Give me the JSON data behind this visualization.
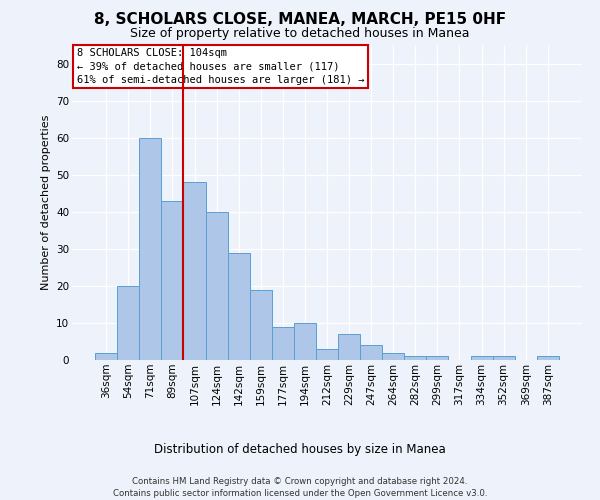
{
  "title": "8, SCHOLARS CLOSE, MANEA, MARCH, PE15 0HF",
  "subtitle": "Size of property relative to detached houses in Manea",
  "xlabel": "Distribution of detached houses by size in Manea",
  "ylabel": "Number of detached properties",
  "bar_labels": [
    "36sqm",
    "54sqm",
    "71sqm",
    "89sqm",
    "107sqm",
    "124sqm",
    "142sqm",
    "159sqm",
    "177sqm",
    "194sqm",
    "212sqm",
    "229sqm",
    "247sqm",
    "264sqm",
    "282sqm",
    "299sqm",
    "317sqm",
    "334sqm",
    "352sqm",
    "369sqm",
    "387sqm"
  ],
  "bar_values": [
    2,
    20,
    60,
    43,
    48,
    40,
    29,
    19,
    9,
    10,
    3,
    7,
    4,
    2,
    1,
    1,
    0,
    1,
    1,
    0,
    1
  ],
  "bar_color": "#aec6e8",
  "bar_edge_color": "#5a9fd4",
  "vline_x_index": 4,
  "vline_color": "#cc0000",
  "annotation_line1": "8 SCHOLARS CLOSE: 104sqm",
  "annotation_line2": "← 39% of detached houses are smaller (117)",
  "annotation_line3": "61% of semi-detached houses are larger (181) →",
  "annotation_box_color": "#ffffff",
  "annotation_box_edge": "#cc0000",
  "ylim": [
    0,
    85
  ],
  "yticks": [
    0,
    10,
    20,
    30,
    40,
    50,
    60,
    70,
    80
  ],
  "footer1": "Contains HM Land Registry data © Crown copyright and database right 2024.",
  "footer2": "Contains public sector information licensed under the Open Government Licence v3.0.",
  "bg_color": "#eef2fa",
  "plot_bg_color": "#eef2fa",
  "title_fontsize": 11,
  "subtitle_fontsize": 9
}
